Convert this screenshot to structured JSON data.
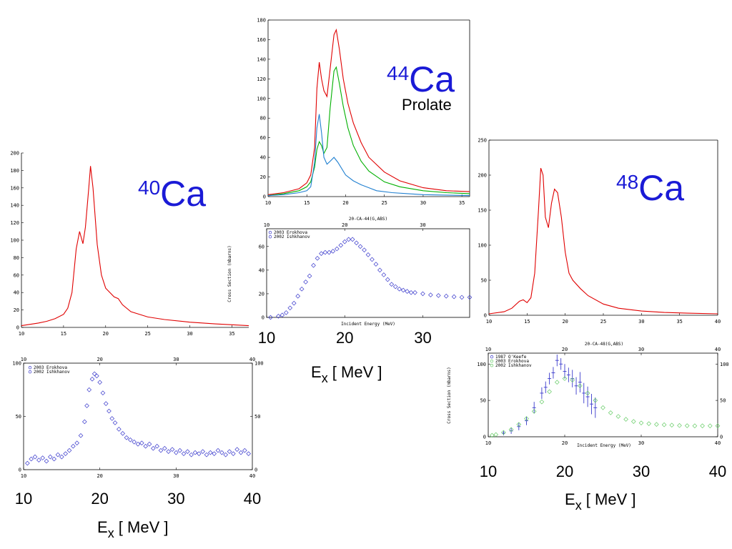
{
  "labels": {
    "ca40_mass": "40",
    "ca40_sym": "Ca",
    "ca44_mass": "44",
    "ca44_sym": "Ca",
    "ca44_shape": "Prolate",
    "ca48_mass": "48",
    "ca48_sym": "Ca",
    "ex_base": "E",
    "ex_sub": "x",
    "ex_unit": " [ MeV ]"
  },
  "colors": {
    "iso": "#1a1ad6",
    "red": "#e00000",
    "green": "#00b000",
    "blue": "#1f7fd0",
    "exp_blue": "#3a3acc",
    "exp_green": "#66cc66"
  },
  "chart_data": [
    {
      "id": "ca40-theory",
      "type": "line",
      "xlim": [
        10,
        37
      ],
      "ylim": [
        0,
        200
      ],
      "xticks": [
        10,
        15,
        20,
        25,
        30,
        35
      ],
      "yticks": [
        0,
        20,
        40,
        60,
        80,
        100,
        120,
        140,
        160,
        180,
        200
      ],
      "series": [
        {
          "color": "red",
          "x": [
            10,
            12,
            13,
            14,
            15,
            15.5,
            16,
            16.5,
            16.9,
            17.3,
            17.6,
            18,
            18.2,
            18.5,
            19,
            19.5,
            20,
            21,
            21.5,
            22,
            23,
            25,
            27,
            30,
            33,
            36,
            37
          ],
          "y": [
            2,
            5,
            7,
            10,
            15,
            22,
            40,
            90,
            110,
            96,
            115,
            160,
            185,
            160,
            95,
            60,
            45,
            35,
            33,
            26,
            18,
            12,
            9,
            6,
            4,
            2.5,
            2
          ]
        }
      ]
    },
    {
      "id": "ca44-theory",
      "type": "line",
      "xlim": [
        10,
        36
      ],
      "ylim": [
        0,
        180
      ],
      "xticks": [
        10,
        15,
        20,
        25,
        30,
        35
      ],
      "yticks": [
        0,
        20,
        40,
        60,
        80,
        100,
        120,
        140,
        160,
        180
      ],
      "series": [
        {
          "color": "red",
          "x": [
            10,
            12,
            14,
            15,
            15.5,
            16,
            16.3,
            16.6,
            16.9,
            17.2,
            17.6,
            18,
            18.5,
            18.8,
            19.2,
            19.7,
            20.3,
            21,
            22,
            23,
            25,
            27,
            30,
            33,
            36
          ],
          "y": [
            2,
            4,
            8,
            14,
            22,
            50,
            110,
            137,
            120,
            108,
            102,
            130,
            165,
            170,
            150,
            120,
            95,
            75,
            55,
            40,
            25,
            16,
            9,
            6,
            5
          ]
        },
        {
          "color": "green",
          "x": [
            10,
            12,
            14,
            15,
            15.5,
            16,
            16.3,
            16.6,
            16.9,
            17.2,
            17.6,
            18,
            18.5,
            18.8,
            19.2,
            19.7,
            20.3,
            21,
            22,
            23,
            25,
            27,
            30,
            33,
            36
          ],
          "y": [
            1,
            3,
            6,
            10,
            15,
            30,
            48,
            56,
            52,
            44,
            50,
            90,
            128,
            132,
            115,
            92,
            70,
            52,
            36,
            26,
            15,
            10,
            6,
            4,
            3
          ]
        },
        {
          "color": "blue",
          "x": [
            10,
            12,
            14,
            15,
            15.5,
            16,
            16.3,
            16.6,
            16.9,
            17.2,
            17.6,
            18,
            18.5,
            19,
            20,
            21,
            22,
            23,
            24,
            26,
            28,
            30,
            36
          ],
          "y": [
            1,
            2,
            4,
            6,
            10,
            35,
            70,
            84,
            65,
            40,
            33,
            36,
            40,
            35,
            22,
            16,
            12,
            9,
            6,
            4,
            3,
            2,
            1
          ]
        }
      ]
    },
    {
      "id": "ca48-theory",
      "type": "line",
      "xlim": [
        10,
        40
      ],
      "ylim": [
        0,
        250
      ],
      "xticks": [
        10,
        15,
        20,
        25,
        30,
        35,
        40
      ],
      "yticks": [
        0,
        50,
        100,
        150,
        200,
        250
      ],
      "series": [
        {
          "color": "red",
          "x": [
            10,
            12,
            13,
            14,
            14.5,
            15,
            15.5,
            16,
            16.5,
            16.8,
            17.1,
            17.4,
            17.8,
            18.2,
            18.6,
            19,
            19.5,
            20,
            20.5,
            21,
            22,
            23,
            25,
            27,
            30,
            33,
            36,
            40
          ],
          "y": [
            2,
            5,
            10,
            20,
            22,
            18,
            25,
            60,
            150,
            210,
            200,
            140,
            125,
            160,
            180,
            175,
            140,
            90,
            60,
            50,
            38,
            28,
            16,
            10,
            6,
            4,
            3,
            2
          ]
        }
      ]
    },
    {
      "id": "ca40-exp",
      "type": "scatter",
      "xlim": [
        10,
        40
      ],
      "ylim": [
        0,
        100
      ],
      "xticks": [
        10,
        20,
        30,
        40
      ],
      "yticks": [
        0,
        50,
        100
      ],
      "legend": [
        "2003 Erokhova",
        "2002 Ishkhanov"
      ],
      "series": [
        {
          "color": "exp_blue",
          "x": [
            10.5,
            11,
            11.5,
            12,
            12.5,
            13,
            13.5,
            14,
            14.5,
            15,
            15.5,
            16,
            16.5,
            17,
            17.5,
            18,
            18.3,
            18.6,
            19,
            19.3,
            19.6,
            20,
            20.4,
            20.8,
            21.2,
            21.6,
            22,
            22.5,
            23,
            23.5,
            24,
            24.5,
            25,
            25.5,
            26,
            26.5,
            27,
            27.5,
            28,
            28.5,
            29,
            29.5,
            30,
            30.5,
            31,
            31.5,
            32,
            32.5,
            33,
            33.5,
            34,
            34.5,
            35,
            35.5,
            36,
            36.5,
            37,
            37.5,
            38,
            38.5,
            39,
            39.5
          ],
          "y": [
            6,
            10,
            12,
            9,
            11,
            8,
            12,
            10,
            14,
            12,
            15,
            18,
            22,
            25,
            32,
            45,
            60,
            75,
            85,
            90,
            88,
            82,
            72,
            62,
            55,
            48,
            44,
            38,
            34,
            30,
            28,
            26,
            24,
            25,
            22,
            24,
            20,
            22,
            18,
            20,
            17,
            19,
            16,
            18,
            15,
            17,
            14,
            16,
            15,
            17,
            14,
            16,
            15,
            18,
            16,
            14,
            17,
            15,
            19,
            16,
            18,
            15
          ]
        }
      ]
    },
    {
      "id": "ca44-exp",
      "type": "scatter",
      "xlim": [
        10,
        36
      ],
      "ylim": [
        0,
        75
      ],
      "xticks": [
        10,
        20,
        30
      ],
      "yticks": [
        0,
        20,
        40,
        60
      ],
      "legend": [
        "2003 Erokhova",
        "2002 Ishkhanov"
      ],
      "title": "20-CA-44(G,ABS)",
      "xlabel": "Incident Energy (MeV)",
      "ylabel": "Cross Section (mbarns)",
      "series": [
        {
          "color": "exp_blue",
          "x": [
            10.5,
            11.5,
            12,
            12.5,
            13,
            13.5,
            14,
            14.5,
            15,
            15.5,
            16,
            16.5,
            17,
            17.5,
            18,
            18.5,
            19,
            19.5,
            20,
            20.5,
            21,
            21.5,
            22,
            22.5,
            23,
            23.5,
            24,
            24.5,
            25,
            25.5,
            26,
            26.5,
            27,
            27.5,
            28,
            28.5,
            29,
            30,
            31,
            32,
            33,
            34,
            35,
            36
          ],
          "y": [
            0,
            1,
            2,
            4,
            8,
            12,
            18,
            24,
            30,
            35,
            44,
            50,
            54,
            55,
            55,
            56,
            58,
            61,
            64,
            66,
            66,
            63,
            60,
            57,
            53,
            49,
            45,
            40,
            36,
            32,
            28,
            26,
            24,
            23,
            22,
            21,
            21,
            20,
            19,
            18.5,
            18,
            17.5,
            17,
            17
          ]
        }
      ]
    },
    {
      "id": "ca48-exp",
      "type": "scatter",
      "xlim": [
        10,
        40
      ],
      "ylim": [
        0,
        115
      ],
      "xticks": [
        10,
        20,
        30,
        40
      ],
      "yticks": [
        0,
        50,
        100
      ],
      "legend": [
        "1987 O'Keefe",
        "2003 Erokhova",
        "2002 Ishkhanov"
      ],
      "title": "20-CA-48(G,ABS)",
      "xlabel": "Incident Energy (MeV)",
      "ylabel": "Cross Section (mbarns)",
      "series": [
        {
          "color": "exp_blue",
          "errorbars": true,
          "x": [
            12,
            13,
            14,
            15,
            16,
            17,
            17.5,
            18,
            18.5,
            19,
            19.5,
            20,
            20.5,
            21,
            21.5,
            22,
            22.5,
            23,
            23.5,
            24
          ],
          "y": [
            5,
            8,
            14,
            22,
            40,
            60,
            68,
            80,
            88,
            105,
            100,
            90,
            85,
            80,
            70,
            75,
            60,
            55,
            45,
            40
          ],
          "err": [
            3,
            4,
            5,
            6,
            8,
            8,
            8,
            8,
            8,
            8,
            8,
            10,
            10,
            12,
            12,
            14,
            14,
            14,
            14,
            14
          ]
        },
        {
          "color": "exp_green",
          "x": [
            10.5,
            11,
            12,
            13,
            14,
            15,
            16,
            17,
            18,
            19,
            20,
            21,
            22,
            23,
            24,
            25,
            26,
            27,
            28,
            29,
            30,
            31,
            32,
            33,
            34,
            35,
            36,
            37,
            38,
            39,
            40
          ],
          "y": [
            2,
            3,
            6,
            10,
            17,
            25,
            35,
            48,
            62,
            75,
            80,
            78,
            70,
            60,
            50,
            40,
            33,
            28,
            24,
            21,
            19,
            18,
            17,
            16.5,
            16,
            15.5,
            15.2,
            15,
            15,
            15,
            15
          ]
        }
      ]
    }
  ]
}
